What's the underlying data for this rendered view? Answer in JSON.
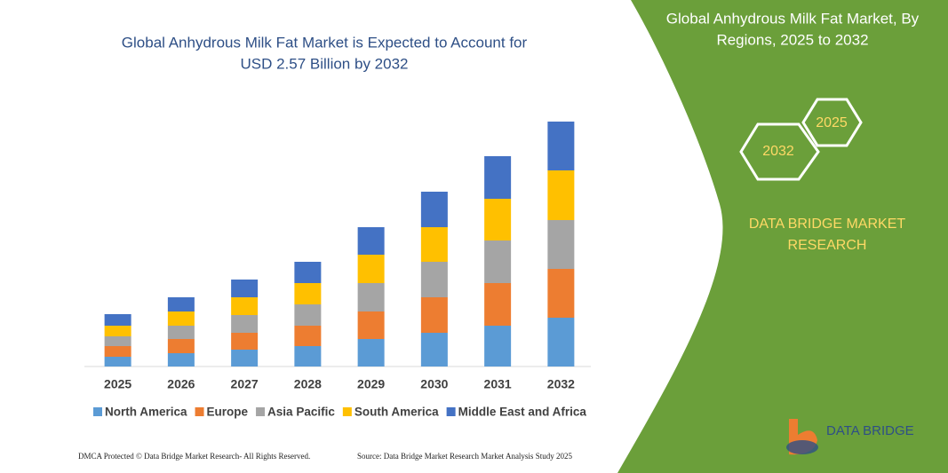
{
  "chart_data": {
    "type": "stacked-bar",
    "title": [
      "Global Anhydrous Milk Fat Market is Expected to Account for",
      "USD 2.57 Billion by 2032"
    ],
    "categories": [
      "2025",
      "2026",
      "2027",
      "2028",
      "2029",
      "2030",
      "2031",
      "2032"
    ],
    "series": [
      {
        "name": "North America",
        "color": "#5b9bd5",
        "values": [
          11,
          15,
          19,
          23,
          31,
          38,
          46,
          55
        ]
      },
      {
        "name": "Europe",
        "color": "#ed7d31",
        "values": [
          12,
          16,
          19,
          23,
          31,
          40,
          48,
          55
        ]
      },
      {
        "name": "Asia Pacific",
        "color": "#a5a5a5",
        "values": [
          11,
          15,
          20,
          24,
          32,
          40,
          48,
          55
        ]
      },
      {
        "name": "South America",
        "color": "#ffc000",
        "values": [
          12,
          16,
          20,
          24,
          32,
          39,
          47,
          56
        ]
      },
      {
        "name": "Middle East and Africa",
        "color": "#4472c4",
        "values": [
          13,
          16,
          20,
          24,
          31,
          40,
          48,
          55
        ]
      }
    ],
    "ylim": [
      0,
      290
    ]
  },
  "panel": {
    "title": [
      "Global Anhydrous Milk Fat Market, By",
      "Regions, 2025 to 2032"
    ],
    "hex_start": "2025",
    "hex_end": "2032",
    "brand": [
      "DATA BRIDGE MARKET",
      "RESEARCH"
    ],
    "logo": "DATA BRIDGE"
  },
  "footer": {
    "left": "DMCA Protected © Data Bridge Market Research-  All Rights Reserved.",
    "right": "Source: Data Bridge Market Research  Market Analysis Study 2025"
  }
}
